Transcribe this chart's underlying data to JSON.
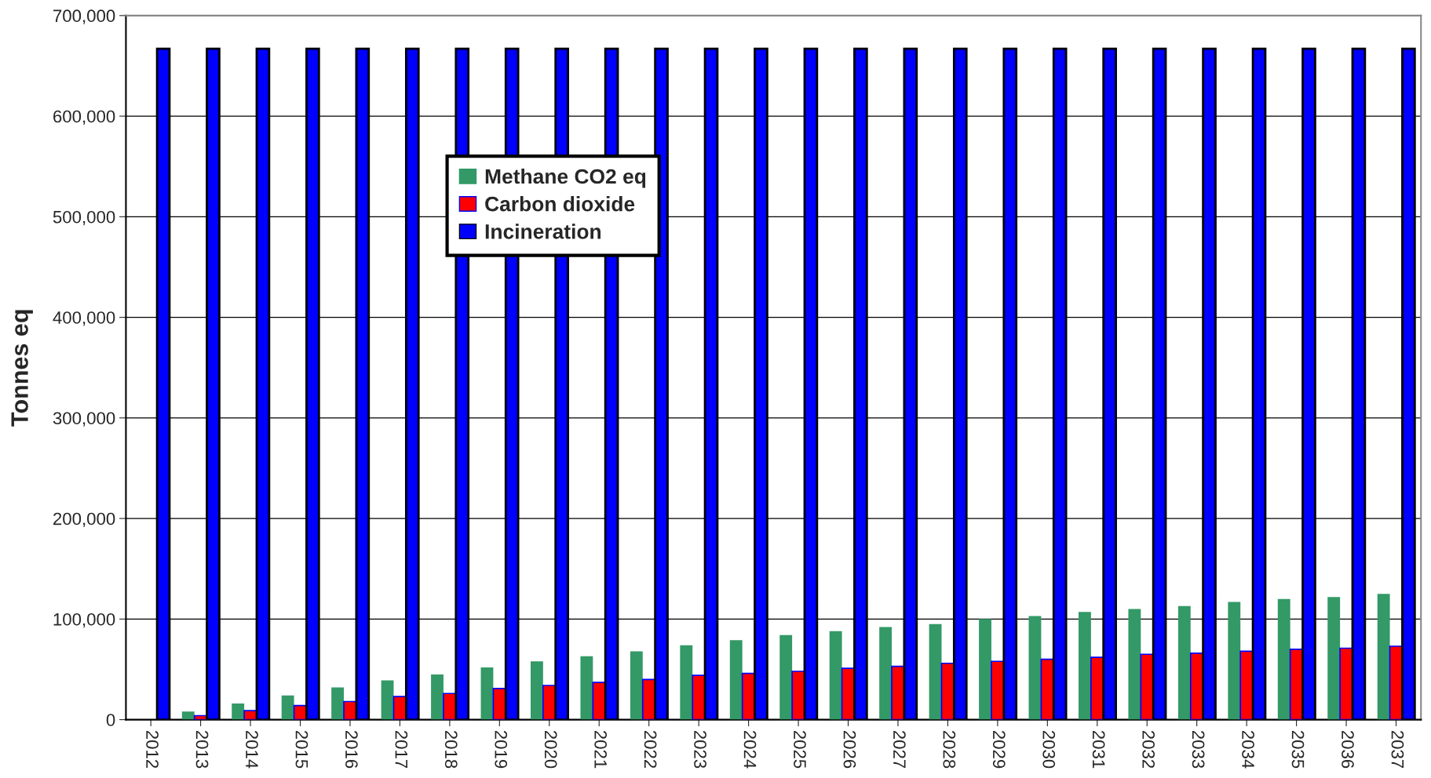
{
  "chart_data": {
    "type": "bar",
    "ylabel": "Tonnes eq",
    "categories": [
      "2012",
      "2013",
      "2014",
      "2015",
      "2016",
      "2017",
      "2018",
      "2019",
      "2020",
      "2021",
      "2022",
      "2023",
      "2024",
      "2025",
      "2026",
      "2027",
      "2028",
      "2029",
      "2030",
      "2031",
      "2032",
      "2033",
      "2034",
      "2035",
      "2036",
      "2037"
    ],
    "series": [
      {
        "name": "Methane CO2 eq",
        "color": "#339966",
        "values": [
          null,
          8000,
          16000,
          24000,
          32000,
          39000,
          45000,
          52000,
          58000,
          63000,
          68000,
          74000,
          79000,
          84000,
          88000,
          92000,
          95000,
          100000,
          103000,
          107000,
          110000,
          113000,
          117000,
          120000,
          122000,
          125000
        ]
      },
      {
        "name": "Carbon dioxide",
        "color": "#ff0000",
        "values": [
          null,
          4000,
          9000,
          14000,
          18000,
          23000,
          26000,
          31000,
          34000,
          37000,
          40000,
          44000,
          46000,
          48000,
          51000,
          53000,
          56000,
          58000,
          60000,
          62000,
          65000,
          66000,
          68000,
          70000,
          71000,
          73000
        ]
      },
      {
        "name": "Incineration",
        "color": "#0000ff",
        "values": [
          667000,
          667000,
          667000,
          667000,
          667000,
          667000,
          667000,
          667000,
          667000,
          667000,
          667000,
          667000,
          667000,
          667000,
          667000,
          667000,
          667000,
          667000,
          667000,
          667000,
          667000,
          667000,
          667000,
          667000,
          667000,
          667000
        ]
      }
    ],
    "ylim": [
      0,
      700000
    ],
    "yticks": [
      {
        "value": 0,
        "label": "0"
      },
      {
        "value": 100000,
        "label": "100,000"
      },
      {
        "value": 200000,
        "label": "200,000"
      },
      {
        "value": 300000,
        "label": "300,000"
      },
      {
        "value": 400000,
        "label": "400,000"
      },
      {
        "value": 500000,
        "label": "500,000"
      },
      {
        "value": 600000,
        "label": "600,000"
      },
      {
        "value": 700000,
        "label": "700,000"
      }
    ],
    "grid": "y",
    "legend": "top left"
  }
}
